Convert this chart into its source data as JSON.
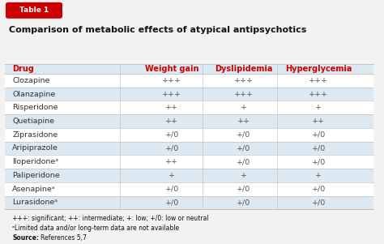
{
  "title": "Comparison of metabolic effects of atypical antipsychotics",
  "table_label": "Table 1",
  "col_headers": [
    "Drug",
    "Weight gain",
    "Dyslipidemia",
    "Hyperglycemia"
  ],
  "rows": [
    [
      "Clozapine",
      "+++",
      "+++",
      "+++"
    ],
    [
      "Olanzapine",
      "+++",
      "+++",
      "+++"
    ],
    [
      "Risperidone",
      "++",
      "+",
      "+"
    ],
    [
      "Quetiapine",
      "++",
      "++",
      "++"
    ],
    [
      "Ziprasidone",
      "+/0",
      "+/0",
      "+/0"
    ],
    [
      "Aripiprazole",
      "+/0",
      "+/0",
      "+/0"
    ],
    [
      "Iloperidoneᵃ",
      "++",
      "+/0",
      "+/0"
    ],
    [
      "Paliperidone",
      "+",
      "+",
      "+"
    ],
    [
      "Asenapineᵃ",
      "+/0",
      "+/0",
      "+/0"
    ],
    [
      "Lurasidoneᵃ",
      "+/0",
      "+/0",
      "+/0"
    ]
  ],
  "footnotes": [
    "+++: significant; ++: intermediate; +: low; +/0: low or neutral",
    "ᵃLimited data and/or long-term data are not available",
    "Source: References 5,7"
  ],
  "bg_color": "#dce8f2",
  "row_alt_color": "#dce8f2",
  "row_white_color": "#ffffff",
  "header_text_color": "#cc0000",
  "drug_text_color": "#333333",
  "cell_text_color": "#555555",
  "title_color": "#111111",
  "table_label_bg": "#cc0000",
  "table_label_text": "#ffffff",
  "border_color": "#bbbbbb",
  "fig_bg": "#f2f2f2"
}
